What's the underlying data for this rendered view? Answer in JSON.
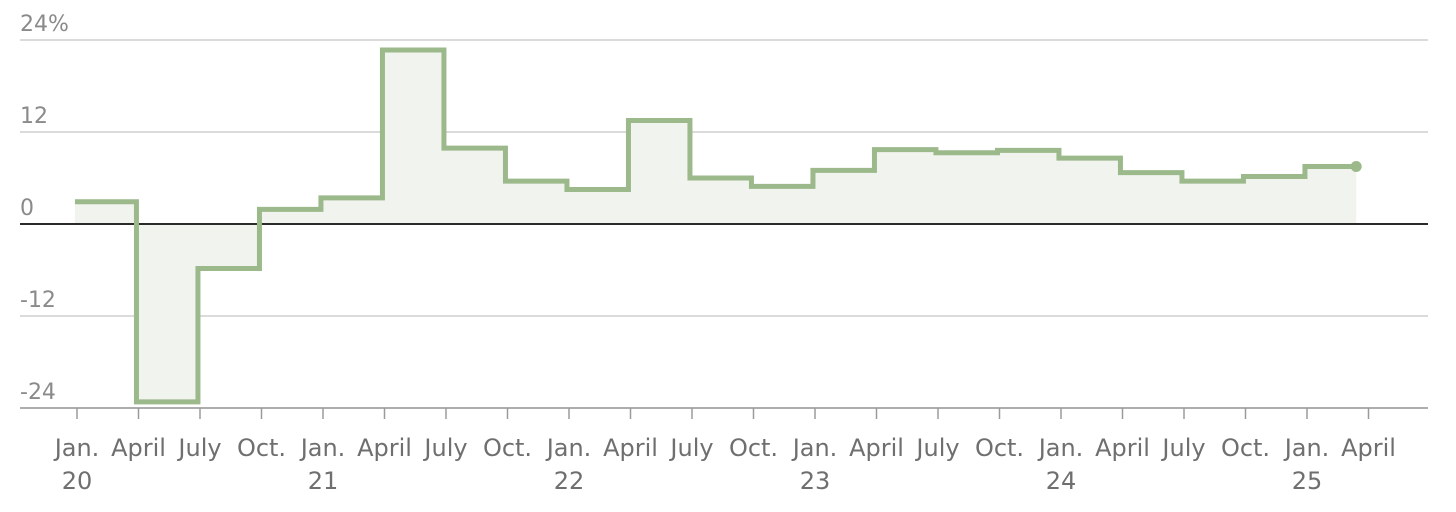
{
  "colors": {
    "line": "#9bb98a",
    "fill": "#f1f3ee",
    "grid": "#cfcfcf",
    "zero": "#2a2a2a",
    "text": "#6f6f6f"
  },
  "chart_data": {
    "type": "line",
    "step": true,
    "title": "",
    "xlabel": "",
    "ylabel": "",
    "ylim": [
      -24,
      24
    ],
    "yticks": [
      {
        "value": 24,
        "label": "24%"
      },
      {
        "value": 12,
        "label": "12"
      },
      {
        "value": 0,
        "label": "0"
      },
      {
        "value": -12,
        "label": "-12"
      },
      {
        "value": -24,
        "label": "-24"
      }
    ],
    "x_range": [
      "2020-01",
      "2025-04"
    ],
    "xticks": [
      {
        "period": "2020-01",
        "label": "Jan.",
        "year": "20"
      },
      {
        "period": "2020-04",
        "label": "April",
        "year": ""
      },
      {
        "period": "2020-07",
        "label": "July",
        "year": ""
      },
      {
        "period": "2020-10",
        "label": "Oct.",
        "year": ""
      },
      {
        "period": "2021-01",
        "label": "Jan.",
        "year": "21"
      },
      {
        "period": "2021-04",
        "label": "April",
        "year": ""
      },
      {
        "period": "2021-07",
        "label": "July",
        "year": ""
      },
      {
        "period": "2021-10",
        "label": "Oct.",
        "year": ""
      },
      {
        "period": "2022-01",
        "label": "Jan.",
        "year": "22"
      },
      {
        "period": "2022-04",
        "label": "April",
        "year": ""
      },
      {
        "period": "2022-07",
        "label": "July",
        "year": ""
      },
      {
        "period": "2022-10",
        "label": "Oct.",
        "year": ""
      },
      {
        "period": "2023-01",
        "label": "Jan.",
        "year": "23"
      },
      {
        "period": "2023-04",
        "label": "April",
        "year": ""
      },
      {
        "period": "2023-07",
        "label": "July",
        "year": ""
      },
      {
        "period": "2023-10",
        "label": "Oct.",
        "year": ""
      },
      {
        "period": "2024-01",
        "label": "Jan.",
        "year": "24"
      },
      {
        "period": "2024-04",
        "label": "April",
        "year": ""
      },
      {
        "period": "2024-07",
        "label": "July",
        "year": ""
      },
      {
        "period": "2024-10",
        "label": "Oct.",
        "year": ""
      },
      {
        "period": "2025-01",
        "label": "Jan.",
        "year": "25"
      },
      {
        "period": "2025-04",
        "label": "April",
        "year": ""
      }
    ],
    "series": [
      {
        "name": "",
        "points": [
          {
            "x": "2020-Q1",
            "y": 2.9
          },
          {
            "x": "2020-Q2",
            "y": -23.2
          },
          {
            "x": "2020-Q3",
            "y": -5.8
          },
          {
            "x": "2020-Q4",
            "y": 1.9
          },
          {
            "x": "2021-Q1",
            "y": 3.4
          },
          {
            "x": "2021-Q2",
            "y": 22.7
          },
          {
            "x": "2021-Q3",
            "y": 9.9
          },
          {
            "x": "2021-Q4",
            "y": 5.6
          },
          {
            "x": "2022-Q1",
            "y": 4.5
          },
          {
            "x": "2022-Q2",
            "y": 13.5
          },
          {
            "x": "2022-Q3",
            "y": 6.0
          },
          {
            "x": "2022-Q4",
            "y": 4.9
          },
          {
            "x": "2023-Q1",
            "y": 7.0
          },
          {
            "x": "2023-Q2",
            "y": 9.7
          },
          {
            "x": "2023-Q3",
            "y": 9.3
          },
          {
            "x": "2023-Q4",
            "y": 9.6
          },
          {
            "x": "2024-Q1",
            "y": 8.6
          },
          {
            "x": "2024-Q2",
            "y": 6.7
          },
          {
            "x": "2024-Q3",
            "y": 5.6
          },
          {
            "x": "2024-Q4",
            "y": 6.2
          },
          {
            "x": "2025-Q1",
            "y": 7.5
          }
        ]
      }
    ],
    "grid": true
  }
}
